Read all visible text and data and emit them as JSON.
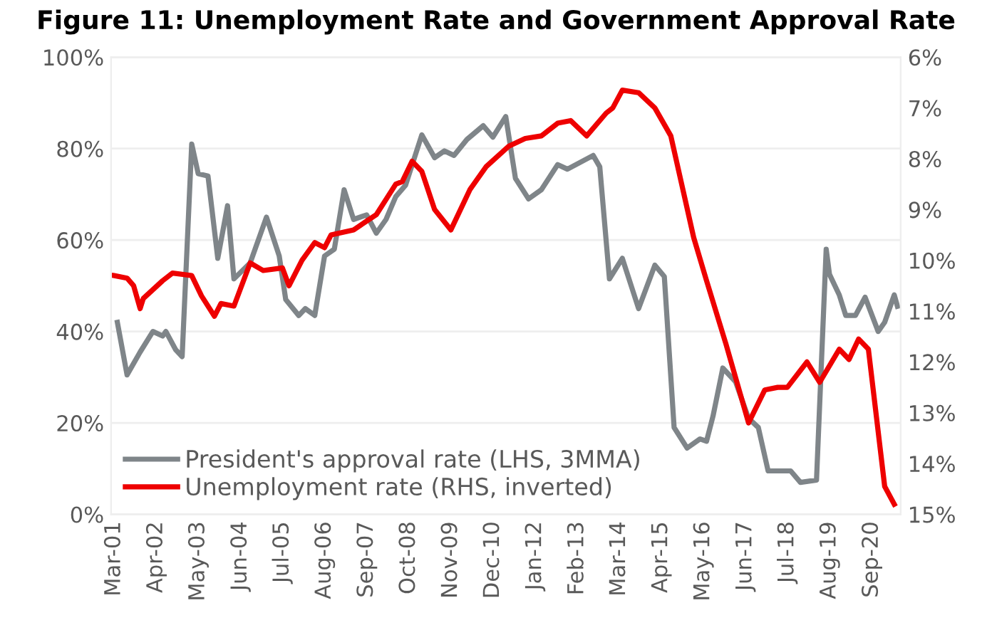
{
  "chart_data": {
    "type": "line",
    "title": "Figure 11: Unemployment Rate and Government Approval Rate",
    "xlim": [
      "2001-02",
      "2021-06"
    ],
    "xticks": [
      {
        "value": "2001-03",
        "label": "Mar-01"
      },
      {
        "value": "2002-04",
        "label": "Apr-02"
      },
      {
        "value": "2003-05",
        "label": "May-03"
      },
      {
        "value": "2004-06",
        "label": "Jun-04"
      },
      {
        "value": "2005-07",
        "label": "Jul-05"
      },
      {
        "value": "2006-08",
        "label": "Aug-06"
      },
      {
        "value": "2007-09",
        "label": "Sep-07"
      },
      {
        "value": "2008-10",
        "label": "Oct-08"
      },
      {
        "value": "2009-11",
        "label": "Nov-09"
      },
      {
        "value": "2010-12",
        "label": "Dec-10"
      },
      {
        "value": "2012-01",
        "label": "Jan-12"
      },
      {
        "value": "2013-02",
        "label": "Feb-13"
      },
      {
        "value": "2014-03",
        "label": "Mar-14"
      },
      {
        "value": "2015-04",
        "label": "Apr-15"
      },
      {
        "value": "2016-05",
        "label": "May-16"
      },
      {
        "value": "2017-06",
        "label": "Jun-17"
      },
      {
        "value": "2018-07",
        "label": "Jul-18"
      },
      {
        "value": "2019-08",
        "label": "Aug-19"
      },
      {
        "value": "2020-09",
        "label": "Sep-20"
      }
    ],
    "ylim": [
      0,
      100
    ],
    "yticks": [
      {
        "value": 0,
        "label": "0%"
      },
      {
        "value": 20,
        "label": "20%"
      },
      {
        "value": 40,
        "label": "40%"
      },
      {
        "value": 60,
        "label": "60%"
      },
      {
        "value": 80,
        "label": "80%"
      },
      {
        "value": 100,
        "label": "100%"
      }
    ],
    "y2lim": [
      15,
      6
    ],
    "y2ticks": [
      {
        "value": 6,
        "label": "6%"
      },
      {
        "value": 7,
        "label": "7%"
      },
      {
        "value": 8,
        "label": "8%"
      },
      {
        "value": 9,
        "label": "9%"
      },
      {
        "value": 10,
        "label": "10%"
      },
      {
        "value": 11,
        "label": "11%"
      },
      {
        "value": 12,
        "label": "12%"
      },
      {
        "value": 13,
        "label": "13%"
      },
      {
        "value": 14,
        "label": "14%"
      },
      {
        "value": 15,
        "label": "15%"
      }
    ],
    "grid": "y",
    "legend": "bottom left",
    "marker": "none",
    "line_style": "solid",
    "series": [
      {
        "name": "President's approval rate (LHS, 3MMA)",
        "color": "#7f8589",
        "x": [
          "2001-04",
          "2001-07",
          "2001-11",
          "2002-03",
          "2002-06",
          "2002-07",
          "2002-10",
          "2002-12",
          "2003-03",
          "2003-05",
          "2003-08",
          "2003-11",
          "2004-02",
          "2004-04",
          "2004-09",
          "2005-02",
          "2005-06",
          "2005-08",
          "2005-12",
          "2006-02",
          "2006-05",
          "2006-08",
          "2006-11",
          "2007-02",
          "2007-05",
          "2007-09",
          "2007-12",
          "2008-03",
          "2008-06",
          "2008-09",
          "2009-02",
          "2009-06",
          "2009-09",
          "2009-12",
          "2010-04",
          "2010-09",
          "2010-12",
          "2011-04",
          "2011-07",
          "2011-11",
          "2012-03",
          "2012-08",
          "2012-11",
          "2013-07",
          "2013-09",
          "2013-12",
          "2014-04",
          "2014-09",
          "2015-02",
          "2015-05",
          "2015-08",
          "2015-12",
          "2016-04",
          "2016-06",
          "2016-08",
          "2016-11",
          "2017-03",
          "2017-07",
          "2017-10",
          "2018-01",
          "2018-08",
          "2018-11",
          "2019-04",
          "2019-07",
          "2019-08",
          "2019-11",
          "2020-01",
          "2020-04",
          "2020-07",
          "2020-11",
          "2021-01",
          "2021-04",
          "2021-05"
        ],
        "values": [
          42,
          30.5,
          35.5,
          40,
          39,
          40,
          36,
          34.5,
          81,
          74.5,
          74,
          56,
          67.5,
          51.5,
          55,
          65,
          56.5,
          47,
          43.5,
          45,
          43.5,
          56.5,
          58,
          71,
          64.5,
          65.5,
          61.5,
          64.5,
          69.5,
          72,
          83,
          78,
          79.5,
          78.5,
          82,
          85,
          82.5,
          87,
          73.5,
          69,
          71,
          76.5,
          75.5,
          78.5,
          76,
          51.5,
          56,
          45,
          54.5,
          52,
          19,
          14.5,
          16.5,
          16,
          21.5,
          32,
          29,
          21,
          19,
          9.5,
          9.5,
          7,
          7.5,
          58,
          52.5,
          48,
          43.5,
          43.5,
          47.5,
          40,
          42,
          48,
          45.5
        ]
      },
      {
        "name": "Unemployment rate (RHS, inverted)",
        "color": "#ee0000",
        "axis": "y2",
        "x": [
          "2001-03",
          "2001-07",
          "2001-09",
          "2001-11",
          "2001-12",
          "2002-06",
          "2002-09",
          "2003-03",
          "2003-06",
          "2003-10",
          "2003-12",
          "2004-04",
          "2004-09",
          "2005-01",
          "2005-07",
          "2005-09",
          "2006-01",
          "2006-05",
          "2006-08",
          "2006-10",
          "2007-05",
          "2007-12",
          "2008-06",
          "2008-08",
          "2008-11",
          "2009-02",
          "2009-06",
          "2009-11",
          "2010-05",
          "2010-10",
          "2011-05",
          "2011-10",
          "2012-03",
          "2012-08",
          "2012-12",
          "2013-05",
          "2013-11",
          "2014-01",
          "2014-04",
          "2014-09",
          "2015-02",
          "2015-07",
          "2016-02",
          "2016-06",
          "2016-12",
          "2017-07",
          "2017-12",
          "2018-04",
          "2018-07",
          "2019-01",
          "2019-05",
          "2019-11",
          "2020-02",
          "2020-05",
          "2020-08",
          "2021-01",
          "2021-04"
        ],
        "values": [
          10.3,
          10.35,
          10.5,
          10.95,
          10.75,
          10.4,
          10.25,
          10.3,
          10.7,
          11.1,
          10.85,
          10.9,
          10.05,
          10.2,
          10.15,
          10.5,
          10.0,
          9.65,
          9.75,
          9.5,
          9.4,
          9.1,
          8.5,
          8.45,
          8.05,
          8.25,
          9.0,
          9.4,
          8.6,
          8.15,
          7.75,
          7.6,
          7.55,
          7.3,
          7.25,
          7.55,
          7.1,
          7.0,
          6.65,
          6.7,
          7.0,
          7.55,
          9.55,
          10.4,
          11.65,
          13.2,
          12.55,
          12.5,
          12.5,
          12.0,
          12.4,
          11.75,
          11.95,
          11.55,
          11.75,
          14.45,
          14.8
        ]
      }
    ]
  }
}
